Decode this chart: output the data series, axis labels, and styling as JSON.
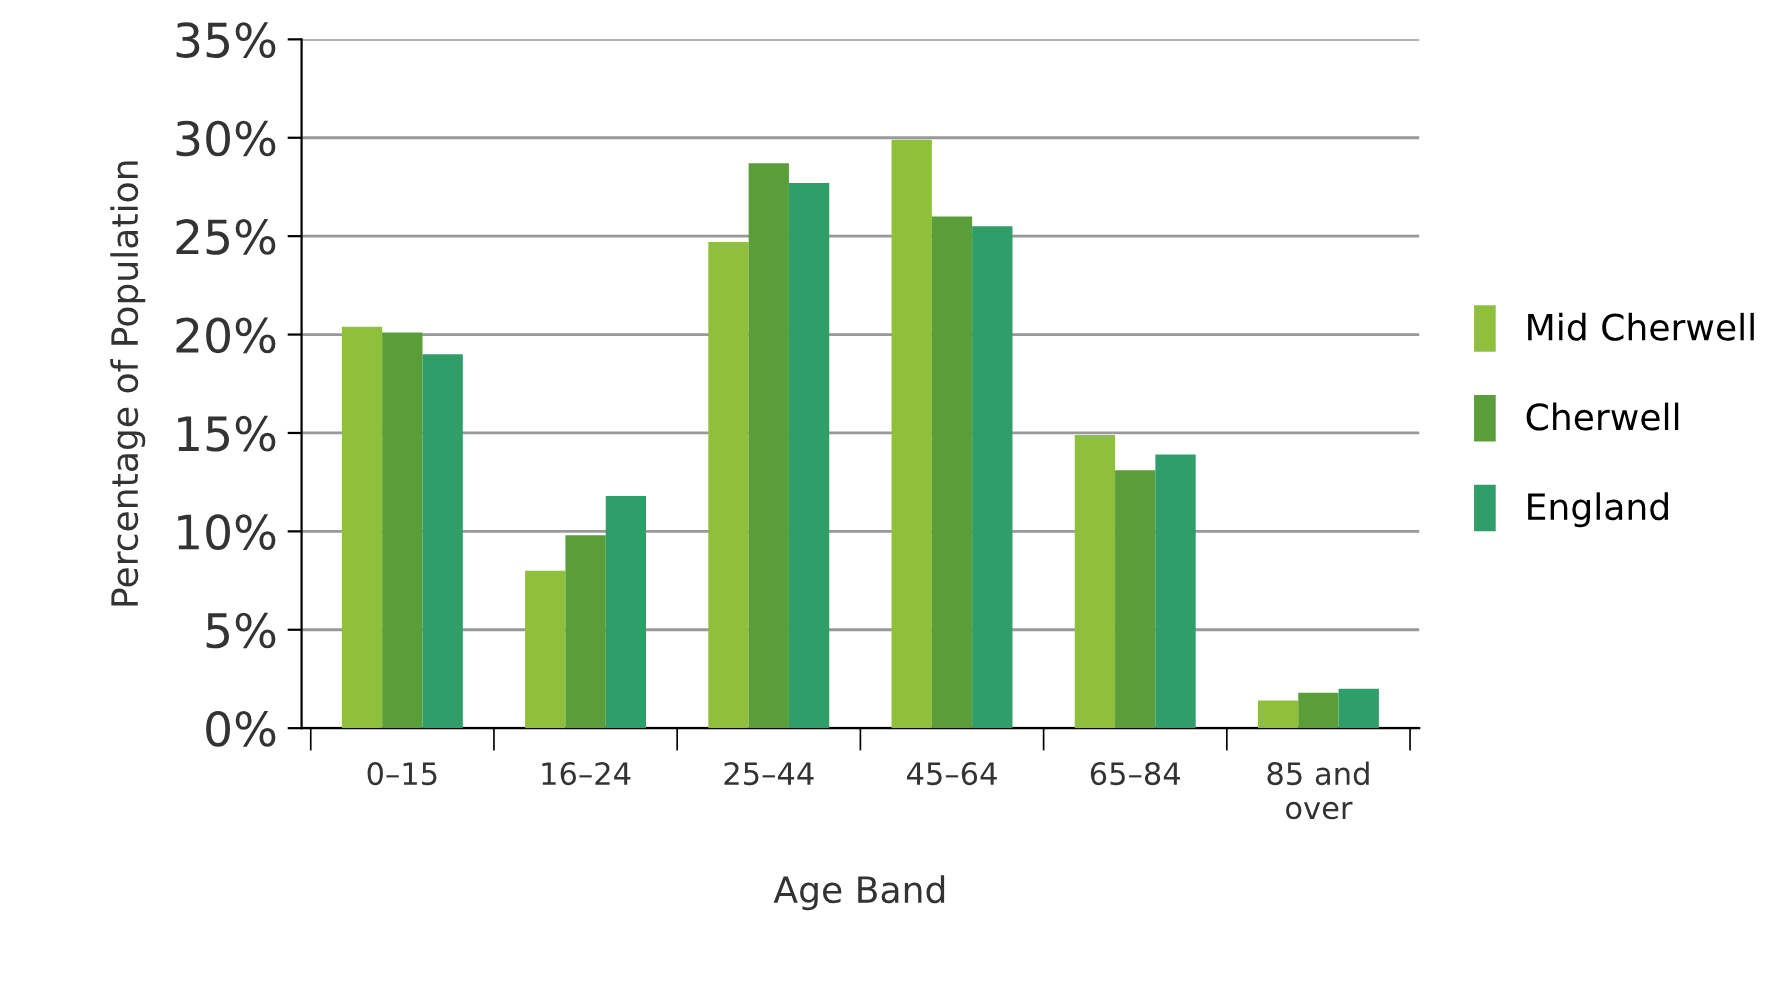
{
  "chart_data": {
    "type": "bar",
    "xlabel": "Age Band",
    "ylabel": "Percentage of Population",
    "categories": [
      "0–15",
      "16–24",
      "25–44",
      "45–64",
      "65–84",
      "85 and\nover"
    ],
    "series": [
      {
        "name": "Mid Cherwell",
        "color": "#8fc03c",
        "values": [
          20.4,
          8.0,
          24.7,
          29.9,
          14.9,
          1.4
        ]
      },
      {
        "name": "Cherwell",
        "color": "#5a9e3a",
        "values": [
          20.1,
          9.8,
          28.7,
          26.0,
          13.1,
          1.8
        ]
      },
      {
        "name": "England",
        "color": "#2f9e68",
        "values": [
          19.0,
          11.8,
          27.7,
          25.5,
          13.9,
          2.0
        ]
      }
    ],
    "ylim": [
      0,
      35
    ],
    "yticks": [
      {
        "value": 0,
        "label": "0%"
      },
      {
        "value": 5,
        "label": "5%"
      },
      {
        "value": 10,
        "label": "10%"
      },
      {
        "value": 15,
        "label": "15%"
      },
      {
        "value": 20,
        "label": "20%"
      },
      {
        "value": 25,
        "label": "25%"
      },
      {
        "value": 30,
        "label": "30%"
      },
      {
        "value": 35,
        "label": "35%"
      }
    ],
    "grid": "y",
    "legend": "right"
  }
}
